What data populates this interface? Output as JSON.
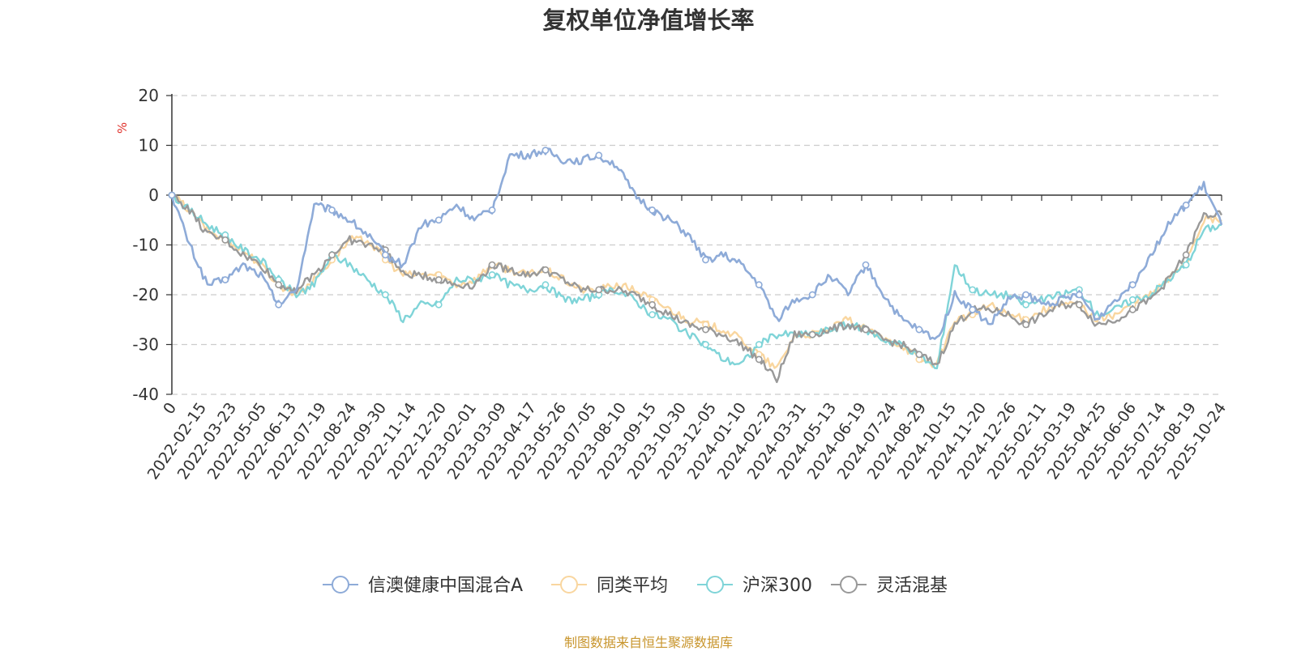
{
  "chart_data": {
    "type": "line",
    "title": "复权单位净值增长率",
    "ylabel": "%",
    "ylim": [
      -40,
      20
    ],
    "y_ticks": [
      "20",
      "10",
      "0",
      "-10",
      "-20",
      "-30",
      "-40"
    ],
    "grid": true,
    "legend_position": "bottom",
    "x_tick_labels": [
      "0",
      "2022-02-15",
      "2022-03-23",
      "2022-05-05",
      "2022-06-13",
      "2022-07-19",
      "2022-08-24",
      "2022-09-30",
      "2022-11-14",
      "2022-12-20",
      "2023-02-01",
      "2023-03-09",
      "2023-04-17",
      "2023-05-26",
      "2023-07-05",
      "2023-08-10",
      "2023-09-15",
      "2023-10-30",
      "2023-12-05",
      "2024-01-10",
      "2024-02-23",
      "2024-03-31",
      "2024-05-13",
      "2024-06-19",
      "2024-07-24",
      "2024-08-29",
      "2024-10-15",
      "2024-11-20",
      "2024-12-26",
      "2025-02-11",
      "2025-03-19",
      "2025-04-25",
      "2025-06-06",
      "2025-07-14",
      "2025-08-19",
      "2025-10-24"
    ],
    "series": [
      {
        "name": "信澳健康中国混合A",
        "color": "#8eabd8",
        "values": [
          0,
          -10,
          -18,
          -17,
          -14,
          -16,
          -22,
          -19,
          -2,
          -3,
          -5,
          -8,
          -12,
          -14,
          -6,
          -5,
          -2,
          -5,
          -3,
          8,
          8,
          9,
          7,
          7,
          8,
          6,
          0,
          -3,
          -5,
          -8,
          -13,
          -12,
          -14,
          -18,
          -25,
          -21,
          -20,
          -16,
          -20,
          -14,
          -20,
          -25,
          -27,
          -29,
          -20,
          -23,
          -26,
          -21,
          -20,
          -22,
          -21,
          -20,
          -25,
          -21,
          -18,
          -12,
          -6,
          -2,
          2,
          -6
        ]
      },
      {
        "name": "同类平均",
        "color": "#f9d69f",
        "values": [
          0,
          -3,
          -7,
          -9,
          -11,
          -14,
          -18,
          -20,
          -17,
          -13,
          -9,
          -9,
          -13,
          -16,
          -16,
          -16,
          -18,
          -17,
          -14,
          -15,
          -16,
          -15,
          -17,
          -19,
          -19,
          -18,
          -19,
          -21,
          -23,
          -25,
          -26,
          -27,
          -29,
          -32,
          -35,
          -28,
          -28,
          -27,
          -25,
          -27,
          -29,
          -30,
          -33,
          -34,
          -25,
          -24,
          -22,
          -24,
          -25,
          -23,
          -22,
          -22,
          -25,
          -24,
          -22,
          -20,
          -17,
          -13,
          -5,
          -5
        ]
      },
      {
        "name": "沪深300",
        "color": "#7fd4d8",
        "values": [
          0,
          -3,
          -6,
          -8,
          -11,
          -13,
          -17,
          -20,
          -18,
          -12,
          -14,
          -17,
          -20,
          -25,
          -22,
          -22,
          -17,
          -17,
          -16,
          -18,
          -19,
          -18,
          -21,
          -21,
          -20,
          -19,
          -21,
          -24,
          -25,
          -28,
          -30,
          -33,
          -34,
          -30,
          -28,
          -28,
          -28,
          -27,
          -26,
          -27,
          -29,
          -30,
          -32,
          -35,
          -14,
          -19,
          -20,
          -20,
          -22,
          -21,
          -20,
          -19,
          -24,
          -23,
          -21,
          -20,
          -17,
          -14,
          -7,
          -6
        ]
      },
      {
        "name": "灵活混基",
        "color": "#999999",
        "values": [
          0,
          -3,
          -8,
          -9,
          -12,
          -14,
          -18,
          -19,
          -16,
          -12,
          -9,
          -10,
          -11,
          -16,
          -16,
          -17,
          -18,
          -18,
          -14,
          -15,
          -16,
          -15,
          -17,
          -19,
          -19,
          -19,
          -20,
          -22,
          -24,
          -26,
          -27,
          -28,
          -30,
          -33,
          -37,
          -28,
          -28,
          -27,
          -26,
          -27,
          -29,
          -30,
          -32,
          -34,
          -26,
          -23,
          -23,
          -24,
          -26,
          -24,
          -22,
          -22,
          -26,
          -25,
          -23,
          -21,
          -17,
          -12,
          -4,
          -4
        ]
      }
    ]
  },
  "source_note": "制图数据来自恒生聚源数据库"
}
